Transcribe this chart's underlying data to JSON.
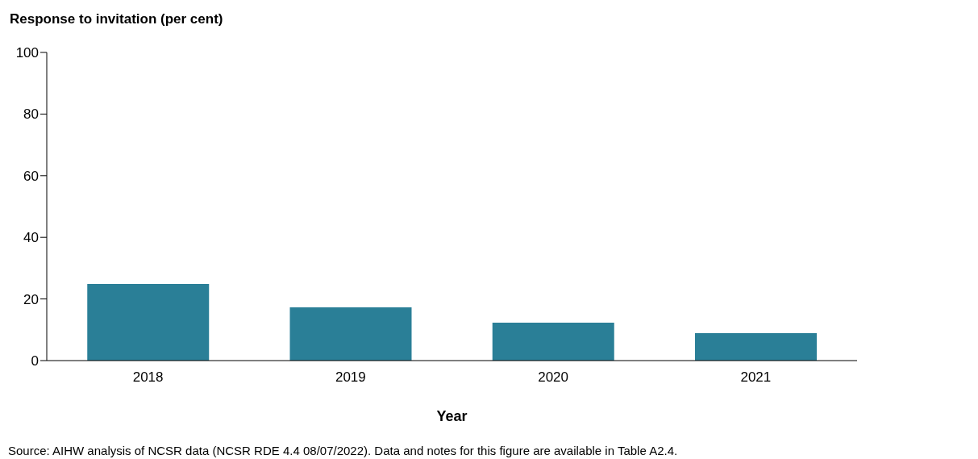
{
  "chart_data": {
    "type": "bar",
    "ylabel": "Response to invitation (per cent)",
    "xlabel": "Year",
    "categories": [
      "2018",
      "2019",
      "2020",
      "2021"
    ],
    "values": [
      24.9,
      17.3,
      12.3,
      8.9
    ],
    "color": "#2a7f97",
    "ylim": [
      0,
      100
    ],
    "yticks": [
      0,
      20,
      40,
      60,
      80,
      100
    ],
    "grid": false,
    "legend": false,
    "annotations": [
      "Source: AIHW analysis of NCSR data (NCSR RDE 4.4 08/07/2022). Data and notes for this figure are available in Table A2.4."
    ]
  }
}
